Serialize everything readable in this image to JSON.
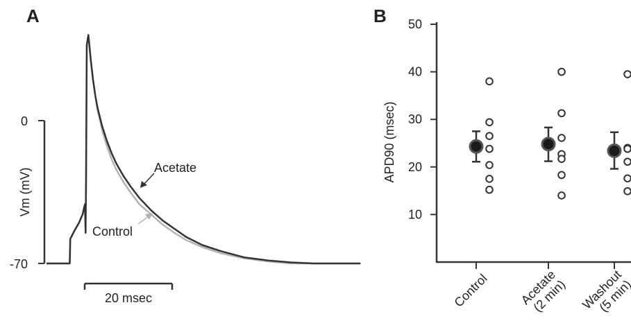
{
  "panel_a": {
    "label": "A",
    "ylabel": "Vm (mV)",
    "y_tick_top": "0",
    "y_tick_bottom": "-70",
    "scale_bar_label": "20 msec",
    "trace_labels": {
      "acetate": "Acetate",
      "control": "Control"
    },
    "colors": {
      "acetate": "#333333",
      "control": "#b3b3b3"
    }
  },
  "panel_b": {
    "label": "B",
    "ylabel": "APD90 (msec)"
  },
  "chart_data": [
    {
      "type": "line",
      "panel": "A",
      "ylabel": "Vm (mV)",
      "ylim": [
        -70,
        0
      ],
      "yticks": [
        0,
        -70
      ],
      "scale_bar": {
        "duration_ms": 20,
        "label": "20 msec"
      },
      "series": [
        {
          "name": "Acetate",
          "color": "#333333",
          "x_ms": [
            0,
            10,
            10.2,
            12,
            14,
            15.5,
            16.5,
            16.8,
            17,
            17.3,
            18,
            19,
            20,
            21,
            22,
            24,
            26,
            28,
            30,
            33,
            36,
            40,
            45,
            50,
            55,
            60,
            67,
            75,
            85,
            95,
            105,
            115,
            125,
            135
          ],
          "vm_mV": [
            -70,
            -70,
            -58,
            -54,
            -50,
            -46,
            -41,
            -55,
            -28,
            37,
            42,
            30,
            20,
            12,
            6,
            -3,
            -10,
            -16,
            -21,
            -27,
            -32,
            -38,
            -44,
            -49,
            -53,
            -57,
            -61,
            -64,
            -67,
            -68.5,
            -69.5,
            -70,
            -70,
            -70
          ]
        },
        {
          "name": "Control",
          "color": "#b3b3b3",
          "x_ms": [
            0,
            10,
            10.2,
            12,
            14,
            15.5,
            16.5,
            16.8,
            17,
            17.3,
            18,
            19,
            20,
            21,
            22,
            24,
            26,
            28,
            30,
            33,
            36,
            40,
            45,
            50,
            55,
            60,
            67,
            75,
            85,
            95,
            105,
            115,
            125,
            135
          ],
          "vm_mV": [
            -70,
            -70,
            -58,
            -54,
            -50,
            -46,
            -41,
            -55,
            -28,
            37,
            42,
            30,
            20,
            12,
            5,
            -5,
            -12.5,
            -19,
            -24,
            -30,
            -35,
            -41,
            -46,
            -51,
            -55,
            -58.5,
            -62,
            -65,
            -67.5,
            -69,
            -70,
            -70,
            -70,
            -70
          ]
        }
      ]
    },
    {
      "type": "scatter",
      "panel": "B",
      "ylabel": "APD90 (msec)",
      "ylim": [
        0,
        50
      ],
      "yticks": [
        10,
        20,
        30,
        40,
        50
      ],
      "categories": [
        "Control",
        "Acetate\n(2 min)",
        "Washout\n(5 min)"
      ],
      "mean": [
        24.3,
        24.8,
        23.4
      ],
      "error_low": [
        21.1,
        21.2,
        19.6
      ],
      "error_high": [
        27.5,
        28.3,
        27.3
      ],
      "points": [
        [
          38.0,
          29.4,
          26.5,
          23.8,
          20.4,
          17.5,
          15.2
        ],
        [
          40.0,
          31.3,
          26.1,
          22.7,
          21.7,
          18.3,
          14.0
        ],
        [
          39.5,
          24.0,
          23.8,
          21.1,
          17.6,
          14.9
        ]
      ]
    }
  ]
}
